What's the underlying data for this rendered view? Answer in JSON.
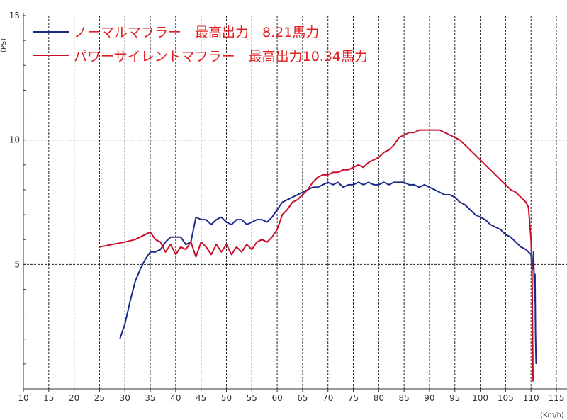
{
  "chart_data": {
    "type": "line",
    "title": "",
    "xlabel": "(Km/h)",
    "ylabel": "(PS)",
    "xlim": [
      10,
      115
    ],
    "ylim": [
      0,
      15
    ],
    "x_ticks": [
      10,
      15,
      20,
      25,
      30,
      35,
      40,
      45,
      50,
      55,
      60,
      65,
      70,
      75,
      80,
      85,
      90,
      95,
      100,
      105,
      110,
      115
    ],
    "y_ticks": [
      5,
      10,
      15
    ],
    "grid": {
      "vertical": "dashed",
      "horizontal_at": [
        5,
        10
      ]
    },
    "legend_placement": "top-left",
    "series": [
      {
        "name": "ノーマルマフラー　最高出力　8.21馬力",
        "color": "#1b2a8c",
        "x": [
          29,
          30,
          31,
          32,
          33,
          34,
          35,
          36,
          37,
          38,
          39,
          40,
          41,
          42,
          43,
          43.5,
          44,
          45,
          46,
          47,
          48,
          49,
          50,
          51,
          52,
          53,
          54,
          55,
          56,
          57,
          58,
          59,
          60,
          61,
          62,
          63,
          64,
          65,
          66,
          67,
          68,
          69,
          70,
          71,
          72,
          73,
          74,
          75,
          76,
          77,
          78,
          79,
          80,
          81,
          82,
          83,
          84,
          85,
          86,
          87,
          88,
          89,
          90,
          91,
          92,
          93,
          94,
          95,
          96,
          97,
          98,
          99,
          100,
          101,
          102,
          103,
          104,
          105,
          106,
          107,
          108,
          109,
          110,
          110.3,
          110.5,
          110.7,
          110.8,
          110.9,
          111
        ],
        "y": [
          2.0,
          2.6,
          3.5,
          4.3,
          4.8,
          5.2,
          5.5,
          5.5,
          5.6,
          5.9,
          6.1,
          6.1,
          6.1,
          5.8,
          5.9,
          6.4,
          6.9,
          6.8,
          6.8,
          6.6,
          6.8,
          6.9,
          6.7,
          6.6,
          6.8,
          6.8,
          6.6,
          6.7,
          6.8,
          6.8,
          6.7,
          6.9,
          7.2,
          7.5,
          7.6,
          7.7,
          7.8,
          7.9,
          8.0,
          8.1,
          8.1,
          8.2,
          8.3,
          8.2,
          8.3,
          8.1,
          8.2,
          8.2,
          8.3,
          8.2,
          8.3,
          8.2,
          8.2,
          8.3,
          8.2,
          8.3,
          8.3,
          8.3,
          8.2,
          8.2,
          8.1,
          8.2,
          8.1,
          8.0,
          7.9,
          7.8,
          7.8,
          7.7,
          7.5,
          7.4,
          7.2,
          7.0,
          6.9,
          6.8,
          6.6,
          6.5,
          6.4,
          6.2,
          6.1,
          5.9,
          5.7,
          5.6,
          5.4,
          4.8,
          5.5,
          3.5,
          4.6,
          2.2,
          1.0
        ]
      },
      {
        "name": "パワーサイレントマフラー　最高出力10.34馬力",
        "color": "#c8102e",
        "x": [
          25,
          30,
          32,
          35,
          36,
          37,
          38,
          39,
          40,
          41,
          42,
          43,
          44,
          45,
          46,
          47,
          48,
          49,
          50,
          51,
          52,
          53,
          54,
          55,
          56,
          57,
          58,
          59,
          60,
          61,
          62,
          63,
          64,
          65,
          66,
          67,
          68,
          69,
          70,
          71,
          72,
          73,
          74,
          75,
          76,
          77,
          78,
          79,
          80,
          81,
          82,
          83,
          84,
          85,
          86,
          87,
          88,
          89,
          90,
          91,
          92,
          93,
          94,
          95,
          96,
          97,
          98,
          99,
          100,
          101,
          102,
          103,
          104,
          105,
          106,
          107,
          108,
          109,
          109.5,
          110,
          110.2,
          110.4
        ],
        "y": [
          5.7,
          5.9,
          6.0,
          6.3,
          6.0,
          5.9,
          5.5,
          5.8,
          5.4,
          5.7,
          5.6,
          5.9,
          5.3,
          5.9,
          5.7,
          5.4,
          5.8,
          5.5,
          5.8,
          5.4,
          5.7,
          5.5,
          5.8,
          5.6,
          5.9,
          6.0,
          5.9,
          6.1,
          6.4,
          7.0,
          7.2,
          7.5,
          7.6,
          7.8,
          8.0,
          8.3,
          8.5,
          8.6,
          8.6,
          8.7,
          8.7,
          8.8,
          8.8,
          8.9,
          9.0,
          8.9,
          9.1,
          9.2,
          9.3,
          9.5,
          9.6,
          9.8,
          10.1,
          10.2,
          10.3,
          10.3,
          10.4,
          10.4,
          10.4,
          10.4,
          10.4,
          10.3,
          10.2,
          10.1,
          10.0,
          9.8,
          9.6,
          9.4,
          9.2,
          9.0,
          8.8,
          8.6,
          8.4,
          8.2,
          8.0,
          7.9,
          7.7,
          7.5,
          7.3,
          6.0,
          4.8,
          0.3
        ]
      }
    ]
  }
}
